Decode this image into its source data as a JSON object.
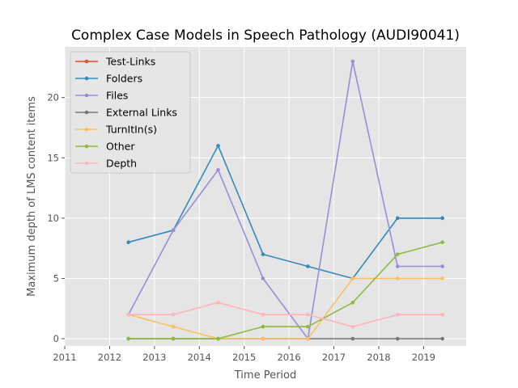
{
  "chart_data": {
    "type": "line",
    "title": "Complex Case Models in Speech Pathology (AUDI90041)",
    "xlabel": "Time Period",
    "ylabel": "Maximum depth of LMS content items",
    "xlim": [
      2011.0,
      2019.95
    ],
    "ylim": [
      -0.6,
      24.2
    ],
    "x_ticks": [
      2011,
      2012,
      2013,
      2014,
      2015,
      2016,
      2017,
      2018,
      2019
    ],
    "y_ticks": [
      0,
      5,
      10,
      15,
      20
    ],
    "grid": true,
    "legend_position": "upper-left",
    "series": [
      {
        "name": "Test-Links",
        "color": "#e24a33",
        "x": [],
        "y": []
      },
      {
        "name": "Folders",
        "color": "#348abd",
        "x": [
          2012.42,
          2013.42,
          2014.42,
          2015.42,
          2016.42,
          2017.42,
          2018.42,
          2019.42
        ],
        "y": [
          8,
          9,
          16,
          7,
          6,
          5,
          10,
          10
        ]
      },
      {
        "name": "Files",
        "color": "#988ed5",
        "x": [
          2012.42,
          2013.42,
          2014.42,
          2015.42,
          2016.42,
          2017.42,
          2018.42,
          2019.42
        ],
        "y": [
          2,
          9,
          14,
          5,
          0,
          23,
          6,
          6
        ]
      },
      {
        "name": "External Links",
        "color": "#777777",
        "x": [
          2012.42,
          2013.42,
          2014.42,
          2015.42,
          2016.42,
          2017.42,
          2018.42,
          2019.42
        ],
        "y": [
          0,
          0,
          0,
          0,
          0,
          0,
          0,
          0
        ]
      },
      {
        "name": "TurnItIn(s)",
        "color": "#fbc15e",
        "x": [
          2012.42,
          2013.42,
          2014.42,
          2015.42,
          2016.42,
          2017.42,
          2018.42,
          2019.42
        ],
        "y": [
          2,
          1,
          0,
          0,
          0,
          5,
          5,
          5
        ]
      },
      {
        "name": "Other",
        "color": "#8eba42",
        "x": [
          2012.42,
          2013.42,
          2014.42,
          2015.42,
          2016.42,
          2017.42,
          2018.42,
          2019.42
        ],
        "y": [
          0,
          0,
          0,
          1,
          1,
          3,
          7,
          8
        ]
      },
      {
        "name": "Depth",
        "color": "#ffb5b8",
        "x": [
          2012.42,
          2013.42,
          2014.42,
          2015.42,
          2016.42,
          2017.42,
          2018.42,
          2019.42
        ],
        "y": [
          2,
          2,
          3,
          2,
          2,
          1,
          2,
          2
        ]
      }
    ]
  }
}
